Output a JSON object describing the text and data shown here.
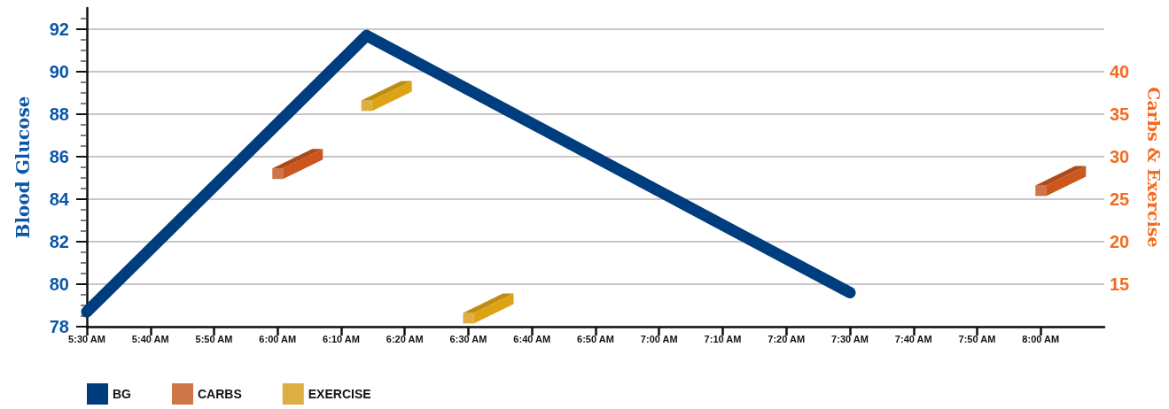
{
  "chart_data": {
    "type": "line",
    "ylabel": "Blood Glucose",
    "y2label": "Carbs & Exercise",
    "xlim": [
      5.5,
      8.1667
    ],
    "xticks": [
      {
        "value": 5.5,
        "label": "5:30 AM"
      },
      {
        "value": 5.6667,
        "label": "5:40 AM"
      },
      {
        "value": 5.8333,
        "label": "5:50 AM"
      },
      {
        "value": 6,
        "label": "6:00 AM"
      },
      {
        "value": 6.1667,
        "label": "6:10 AM"
      },
      {
        "value": 6.3333,
        "label": "6:20 AM"
      },
      {
        "value": 6.5,
        "label": "6:30 AM"
      },
      {
        "value": 6.6667,
        "label": "6:40 AM"
      },
      {
        "value": 6.8333,
        "label": "6:50 AM"
      },
      {
        "value": 7,
        "label": "7:00 AM"
      },
      {
        "value": 7.1667,
        "label": "7:10 AM"
      },
      {
        "value": 7.3333,
        "label": "7:20 AM"
      },
      {
        "value": 7.5,
        "label": "7:30 AM"
      },
      {
        "value": 7.6667,
        "label": "7:40 AM"
      },
      {
        "value": 7.8333,
        "label": "7:50 AM"
      },
      {
        "value": 8,
        "label": "8:00 AM"
      }
    ],
    "ylim": [
      78,
      93
    ],
    "yticks": [
      78,
      {
        "value": 78.5,
        "label": null
      },
      {
        "value": 79,
        "label": null
      },
      {
        "value": 79.5,
        "label": null
      },
      80,
      {
        "value": 80.5,
        "label": null
      },
      {
        "value": 81,
        "label": null
      },
      {
        "value": 81.5,
        "label": null
      },
      82,
      {
        "value": 82.5,
        "label": null
      },
      {
        "value": 83,
        "label": null
      },
      {
        "value": 83.5,
        "label": null
      },
      84,
      {
        "value": 84.5,
        "label": null
      },
      {
        "value": 85,
        "label": null
      },
      {
        "value": 85.5,
        "label": null
      },
      86,
      {
        "value": 86.5,
        "label": null
      },
      {
        "value": 87,
        "label": null
      },
      {
        "value": 87.5,
        "label": null
      },
      88,
      {
        "value": 88.5,
        "label": null
      },
      {
        "value": 89,
        "label": null
      },
      {
        "value": 89.5,
        "label": null
      },
      90,
      {
        "value": 90.5,
        "label": null
      },
      {
        "value": 91,
        "label": null
      },
      {
        "value": 91.5,
        "label": null
      },
      92,
      {
        "value": 92.5,
        "label": null
      }
    ],
    "y2lim": [
      10,
      47.5
    ],
    "y2ticks": [
      15,
      20,
      25,
      30,
      35,
      40
    ],
    "series": [
      {
        "name": "BG",
        "color": "#003d7e",
        "marker": "none",
        "x": [
          5.5,
          6.2333,
          7.5
        ],
        "values": [
          78.7,
          91.7,
          79.6
        ]
      },
      {
        "name": "CARBS",
        "type": "scatter",
        "axis": "y2",
        "color": "#c2521c",
        "marker": "square",
        "x": [
          6,
          8
        ],
        "values": [
          28,
          26
        ]
      },
      {
        "name": "EXERCISE",
        "type": "scatter",
        "axis": "y2",
        "color": "#d39b14",
        "marker": "square",
        "x": [
          6.2333,
          6.5
        ],
        "values": [
          36,
          11
        ]
      }
    ],
    "grid": "y",
    "legend": "bottom left",
    "line_style": "solid"
  }
}
